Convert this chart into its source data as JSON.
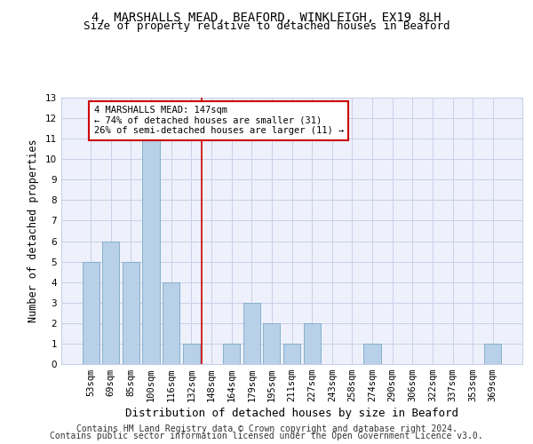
{
  "title1": "4, MARSHALLS MEAD, BEAFORD, WINKLEIGH, EX19 8LH",
  "title2": "Size of property relative to detached houses in Beaford",
  "xlabel": "Distribution of detached houses by size in Beaford",
  "ylabel": "Number of detached properties",
  "categories": [
    "53sqm",
    "69sqm",
    "85sqm",
    "100sqm",
    "116sqm",
    "132sqm",
    "148sqm",
    "164sqm",
    "179sqm",
    "195sqm",
    "211sqm",
    "227sqm",
    "243sqm",
    "258sqm",
    "274sqm",
    "290sqm",
    "306sqm",
    "322sqm",
    "337sqm",
    "353sqm",
    "369sqm"
  ],
  "values": [
    5,
    6,
    5,
    11,
    4,
    1,
    0,
    1,
    3,
    2,
    1,
    2,
    0,
    0,
    1,
    0,
    0,
    0,
    0,
    0,
    1
  ],
  "bar_color": "#b8d0e8",
  "bar_edge_color": "#7aaac8",
  "vline_x": 5.5,
  "vline_color": "#cc0000",
  "annotation_box_text": "4 MARSHALLS MEAD: 147sqm\n← 74% of detached houses are smaller (31)\n26% of semi-detached houses are larger (11) →",
  "ylim": [
    0,
    13
  ],
  "yticks": [
    0,
    1,
    2,
    3,
    4,
    5,
    6,
    7,
    8,
    9,
    10,
    11,
    12,
    13
  ],
  "footer1": "Contains HM Land Registry data © Crown copyright and database right 2024.",
  "footer2": "Contains public sector information licensed under the Open Government Licence v3.0.",
  "bg_color": "#eef1fb",
  "grid_color": "#c8cfe8",
  "title1_fontsize": 10,
  "title2_fontsize": 9,
  "xlabel_fontsize": 9,
  "ylabel_fontsize": 8.5,
  "tick_fontsize": 7.5,
  "footer_fontsize": 7
}
